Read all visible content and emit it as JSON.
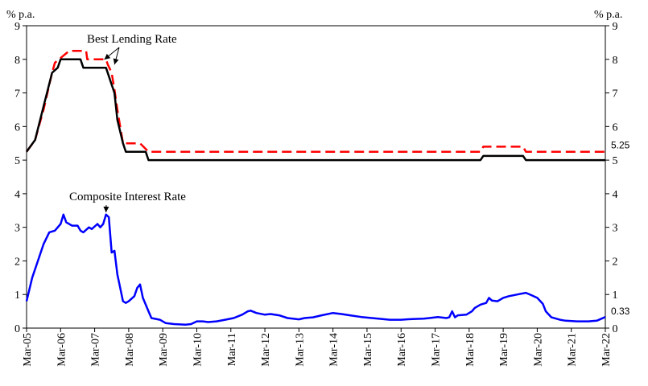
{
  "chart_data": {
    "type": "line",
    "title": "",
    "xlabel": "",
    "ylabel": "",
    "ylabel_left": "% p.a.",
    "ylabel_right": "% p.a.",
    "ylim": [
      0,
      9
    ],
    "yticks": [
      0,
      1,
      2,
      3,
      4,
      5,
      6,
      7,
      8,
      9
    ],
    "xlim": [
      2005.167,
      2022.167
    ],
    "x_unit": "decimal year (month markers at March)",
    "xticks": [
      "Mar-05",
      "Mar-06",
      "Mar-07",
      "Mar-08",
      "Mar-09",
      "Mar-10",
      "Mar-11",
      "Mar-12",
      "Mar-13",
      "Mar-14",
      "Mar-15",
      "Mar-16",
      "Mar-17",
      "Mar-18",
      "Mar-19",
      "Mar-20",
      "Mar-21",
      "Mar-22"
    ],
    "grid": false,
    "legend": "none",
    "series": [
      {
        "name": "Best Lending Rate",
        "color": "#ff0000",
        "dash": "dashed",
        "points": [
          [
            2005.167,
            5.25
          ],
          [
            2005.417,
            5.6
          ],
          [
            2005.667,
            6.5
          ],
          [
            2005.917,
            7.6
          ],
          [
            2006.0,
            7.9
          ],
          [
            2006.417,
            8.25
          ],
          [
            2006.917,
            8.25
          ],
          [
            2006.95,
            8.0
          ],
          [
            2007.5,
            8.0
          ],
          [
            2007.55,
            7.85
          ],
          [
            2007.667,
            7.6
          ],
          [
            2007.75,
            7.1
          ],
          [
            2007.833,
            6.5
          ],
          [
            2007.917,
            6.0
          ],
          [
            2008.0,
            5.5
          ],
          [
            2008.5,
            5.5
          ],
          [
            2008.75,
            5.25
          ],
          [
            2018.5,
            5.25
          ],
          [
            2018.583,
            5.4
          ],
          [
            2019.75,
            5.4
          ],
          [
            2019.833,
            5.25
          ],
          [
            2022.167,
            5.25
          ]
        ]
      },
      {
        "name": "",
        "color": "#000000",
        "dash": "solid",
        "points": [
          [
            2005.167,
            5.25
          ],
          [
            2005.417,
            5.6
          ],
          [
            2005.667,
            6.6
          ],
          [
            2005.917,
            7.6
          ],
          [
            2006.083,
            7.75
          ],
          [
            2006.167,
            8.0
          ],
          [
            2006.75,
            8.0
          ],
          [
            2006.833,
            7.75
          ],
          [
            2007.5,
            7.75
          ],
          [
            2007.583,
            7.5
          ],
          [
            2007.75,
            7.0
          ],
          [
            2007.833,
            6.2
          ],
          [
            2008.0,
            5.5
          ],
          [
            2008.083,
            5.25
          ],
          [
            2008.667,
            5.25
          ],
          [
            2008.75,
            5.0
          ],
          [
            2018.5,
            5.0
          ],
          [
            2018.583,
            5.125
          ],
          [
            2019.75,
            5.125
          ],
          [
            2019.833,
            5.0
          ],
          [
            2022.167,
            5.0
          ]
        ]
      },
      {
        "name": "Composite Interest Rate",
        "color": "#0000ff",
        "dash": "solid",
        "points": [
          [
            2005.167,
            0.8
          ],
          [
            2005.333,
            1.5
          ],
          [
            2005.5,
            2.0
          ],
          [
            2005.667,
            2.5
          ],
          [
            2005.833,
            2.85
          ],
          [
            2006.0,
            2.9
          ],
          [
            2006.167,
            3.1
          ],
          [
            2006.25,
            3.38
          ],
          [
            2006.333,
            3.15
          ],
          [
            2006.5,
            3.05
          ],
          [
            2006.667,
            3.05
          ],
          [
            2006.75,
            2.9
          ],
          [
            2006.833,
            2.85
          ],
          [
            2007.0,
            3.0
          ],
          [
            2007.083,
            2.95
          ],
          [
            2007.25,
            3.1
          ],
          [
            2007.333,
            3.0
          ],
          [
            2007.417,
            3.1
          ],
          [
            2007.5,
            3.38
          ],
          [
            2007.583,
            3.3
          ],
          [
            2007.667,
            2.25
          ],
          [
            2007.75,
            2.3
          ],
          [
            2007.833,
            1.6
          ],
          [
            2007.917,
            1.2
          ],
          [
            2008.0,
            0.8
          ],
          [
            2008.083,
            0.75
          ],
          [
            2008.167,
            0.8
          ],
          [
            2008.333,
            0.95
          ],
          [
            2008.417,
            1.2
          ],
          [
            2008.5,
            1.3
          ],
          [
            2008.583,
            0.9
          ],
          [
            2008.75,
            0.5
          ],
          [
            2008.833,
            0.3
          ],
          [
            2009.083,
            0.25
          ],
          [
            2009.25,
            0.15
          ],
          [
            2009.5,
            0.12
          ],
          [
            2009.833,
            0.1
          ],
          [
            2010.0,
            0.12
          ],
          [
            2010.167,
            0.2
          ],
          [
            2010.333,
            0.2
          ],
          [
            2010.5,
            0.18
          ],
          [
            2010.75,
            0.2
          ],
          [
            2011.0,
            0.25
          ],
          [
            2011.25,
            0.3
          ],
          [
            2011.5,
            0.4
          ],
          [
            2011.667,
            0.5
          ],
          [
            2011.75,
            0.52
          ],
          [
            2011.917,
            0.45
          ],
          [
            2012.167,
            0.4
          ],
          [
            2012.333,
            0.42
          ],
          [
            2012.583,
            0.38
          ],
          [
            2012.833,
            0.3
          ],
          [
            2013.167,
            0.26
          ],
          [
            2013.333,
            0.3
          ],
          [
            2013.583,
            0.32
          ],
          [
            2013.833,
            0.38
          ],
          [
            2014.167,
            0.45
          ],
          [
            2014.417,
            0.42
          ],
          [
            2014.667,
            0.38
          ],
          [
            2015.0,
            0.33
          ],
          [
            2015.5,
            0.28
          ],
          [
            2015.833,
            0.25
          ],
          [
            2016.167,
            0.25
          ],
          [
            2016.5,
            0.27
          ],
          [
            2016.833,
            0.28
          ],
          [
            2017.0,
            0.3
          ],
          [
            2017.25,
            0.33
          ],
          [
            2017.5,
            0.3
          ],
          [
            2017.583,
            0.32
          ],
          [
            2017.667,
            0.5
          ],
          [
            2017.75,
            0.32
          ],
          [
            2017.833,
            0.38
          ],
          [
            2018.083,
            0.4
          ],
          [
            2018.25,
            0.5
          ],
          [
            2018.333,
            0.6
          ],
          [
            2018.5,
            0.7
          ],
          [
            2018.667,
            0.75
          ],
          [
            2018.75,
            0.9
          ],
          [
            2018.833,
            0.82
          ],
          [
            2019.0,
            0.8
          ],
          [
            2019.167,
            0.9
          ],
          [
            2019.333,
            0.95
          ],
          [
            2019.583,
            1.0
          ],
          [
            2019.833,
            1.05
          ],
          [
            2020.0,
            0.98
          ],
          [
            2020.167,
            0.9
          ],
          [
            2020.333,
            0.72
          ],
          [
            2020.417,
            0.5
          ],
          [
            2020.583,
            0.32
          ],
          [
            2020.833,
            0.25
          ],
          [
            2021.0,
            0.22
          ],
          [
            2021.333,
            0.2
          ],
          [
            2021.667,
            0.2
          ],
          [
            2021.917,
            0.22
          ],
          [
            2022.167,
            0.33
          ]
        ]
      }
    ],
    "annotations": [
      {
        "text": "Best Lending Rate",
        "arrows_to": [
          [
            2007.45,
            7.9
          ],
          [
            2007.75,
            7.75
          ]
        ]
      },
      {
        "text": "Composite Interest Rate",
        "arrows_to": [
          [
            2007.5,
            3.35
          ]
        ]
      }
    ],
    "end_labels": [
      {
        "text": "5.25",
        "value": 5.25
      },
      {
        "text": "0.33",
        "value": 0.33
      }
    ]
  }
}
